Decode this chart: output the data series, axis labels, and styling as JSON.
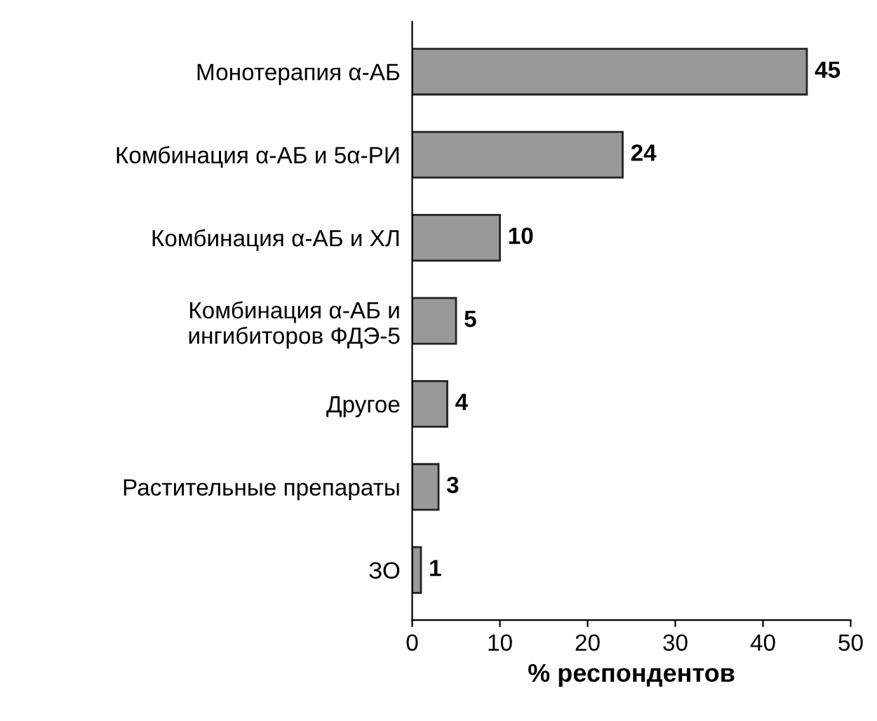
{
  "chart_data": {
    "type": "bar",
    "orientation": "horizontal",
    "categories": [
      "Монотерапия α-АБ",
      "Комбинация α-АБ и 5α-РИ",
      "Комбинация α-АБ и ХЛ",
      "Комбинация α-АБ и\nингибиторов ФДЭ-5",
      "Другое",
      "Растительные препараты",
      "ЗО"
    ],
    "values": [
      45,
      24,
      10,
      5,
      4,
      3,
      1
    ],
    "color": "#999999",
    "xlim": [
      0,
      50
    ],
    "xticks": [
      0,
      10,
      20,
      30,
      40,
      50
    ],
    "xlabel": "% респондентов",
    "data_labels": true,
    "grid": false
  }
}
